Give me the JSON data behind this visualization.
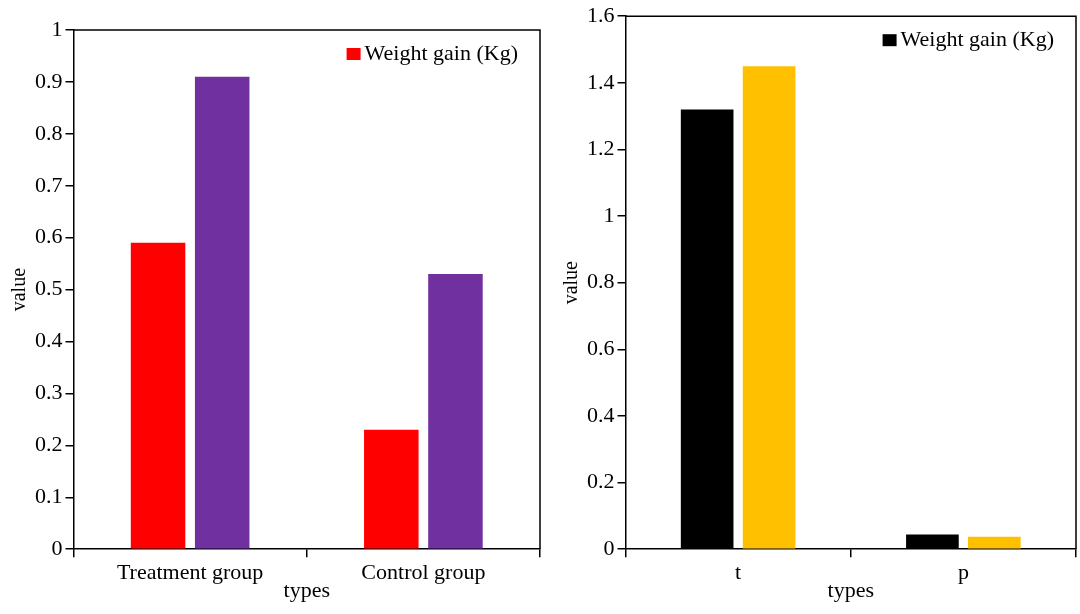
{
  "chart_data": [
    {
      "type": "bar",
      "xlabel": "types",
      "ylabel": "value",
      "categories": [
        "Treatment group",
        "Control group"
      ],
      "series": [
        {
          "name": "Weight gain (Kg)",
          "color": "#ff0000",
          "values": [
            0.59,
            0.23
          ]
        },
        {
          "color": "#7030a0",
          "values": [
            0.91,
            0.53
          ]
        }
      ],
      "ylim": [
        0,
        1
      ],
      "yticks": [
        0,
        0.1,
        0.2,
        0.3,
        0.4,
        0.5,
        0.6,
        0.7,
        0.8,
        0.9,
        1
      ],
      "grid": false,
      "legend": "top right"
    },
    {
      "type": "bar",
      "xlabel": "types",
      "ylabel": "value",
      "categories": [
        "t",
        "p"
      ],
      "series": [
        {
          "name": "Weight gain (Kg)",
          "color": "#000000",
          "values": [
            1.32,
            0.044
          ]
        },
        {
          "color": "#ffc000",
          "values": [
            1.45,
            0.037
          ]
        }
      ],
      "ylim": [
        0,
        1.6
      ],
      "yticks": [
        0,
        0.2,
        0.4,
        0.6,
        0.8,
        1,
        1.2,
        1.4,
        1.6
      ],
      "grid": false,
      "legend": "top right"
    }
  ]
}
